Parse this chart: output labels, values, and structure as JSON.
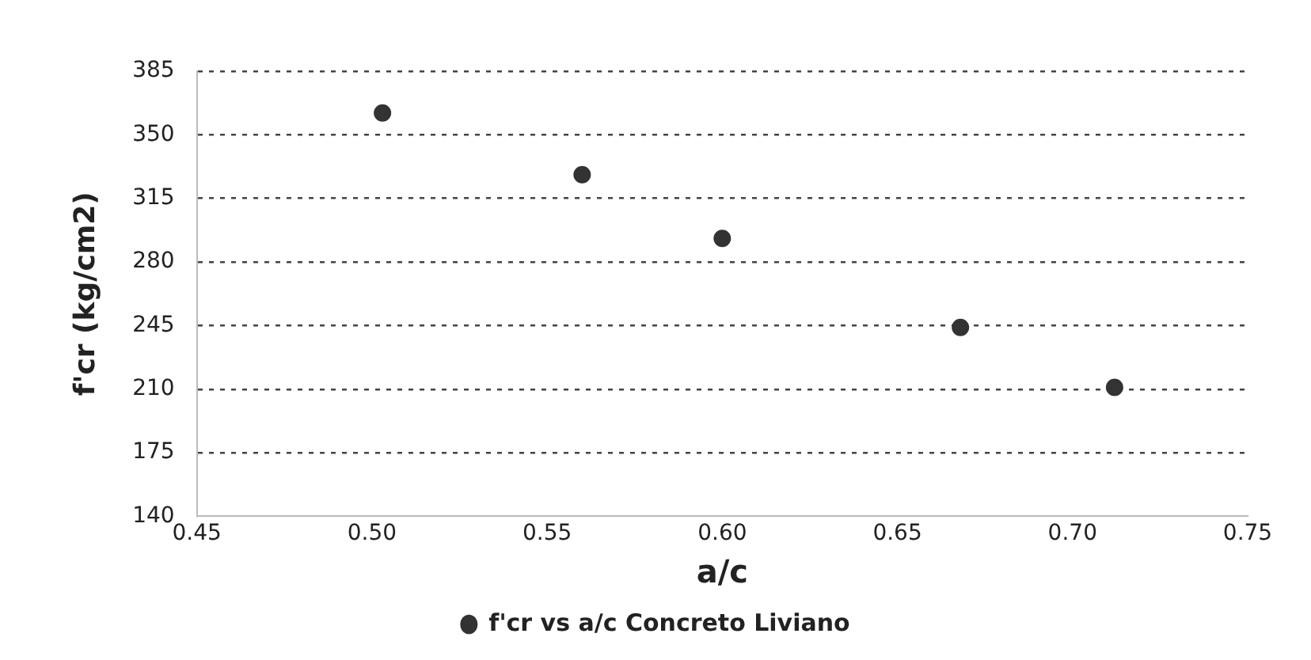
{
  "chart_data": {
    "type": "scatter",
    "xlabel": "a/c",
    "ylabel": "f'cr (kg/cm2)",
    "x": [
      0.503,
      0.56,
      0.6,
      0.668,
      0.712
    ],
    "series": [
      {
        "name": "f'cr vs a/c Concreto Liviano",
        "color": "#333333",
        "values": [
          362,
          328,
          293,
          244,
          211
        ]
      }
    ],
    "xlim": [
      0.45,
      0.75
    ],
    "xticks": [
      0.45,
      {
        "value": 0.5,
        "label": "0.50"
      },
      0.55,
      {
        "value": 0.6,
        "label": "0.60"
      },
      0.65,
      {
        "value": 0.7,
        "label": "0.70"
      },
      0.75
    ],
    "ylim": [
      140,
      385
    ],
    "yticks": [
      140,
      175,
      210,
      245,
      280,
      315,
      350,
      385
    ],
    "grid": "y",
    "legend": "bottom",
    "marker": "circle"
  }
}
